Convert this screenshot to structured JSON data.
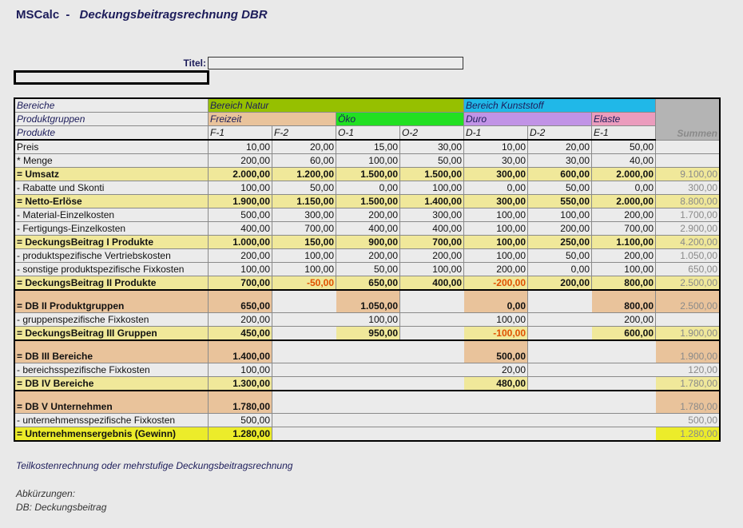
{
  "app": {
    "name": "MSCalc",
    "separator": "-",
    "title": "Deckungsbeitragsrechnung DBR"
  },
  "titel": {
    "label": "Titel:",
    "value": ""
  },
  "header": {
    "bereiche_label": "Bereiche",
    "produktgruppen_label": "Produktgruppen",
    "produkte_label": "Produkte",
    "bereiche": [
      {
        "label": "Bereich Natur",
        "color": "#96c000"
      },
      {
        "label": "Bereich Kunststoff",
        "color": "#20b8e8"
      }
    ],
    "gruppen": [
      {
        "label": "Freizeit",
        "color": "#e9c39b"
      },
      {
        "label": "Öko",
        "color": "#22e022"
      },
      {
        "label": "Duro",
        "color": "#c193e6"
      },
      {
        "label": "Elaste",
        "color": "#eb9cbd"
      }
    ],
    "produkte": [
      "F-1",
      "F-2",
      "O-1",
      "O-2",
      "D-1",
      "D-2",
      "E-1"
    ],
    "summen_label": "Summen"
  },
  "rows": [
    {
      "label": "Preis",
      "kind": "normal",
      "cells": [
        "10,00",
        "20,00",
        "15,00",
        "30,00",
        "10,00",
        "20,00",
        "50,00",
        ""
      ]
    },
    {
      "label": "* Menge",
      "kind": "normal",
      "cells": [
        "200,00",
        "60,00",
        "100,00",
        "50,00",
        "30,00",
        "30,00",
        "40,00",
        ""
      ]
    },
    {
      "label": "= Umsatz",
      "kind": "sum",
      "fill": "yellow",
      "cells": [
        "2.000,00",
        "1.200,00",
        "1.500,00",
        "1.500,00",
        "300,00",
        "600,00",
        "2.000,00",
        "9.100,00"
      ]
    },
    {
      "label": "- Rabatte und Skonti",
      "kind": "normal",
      "cells": [
        "100,00",
        "50,00",
        "0,00",
        "100,00",
        "0,00",
        "50,00",
        "0,00",
        "300,00"
      ]
    },
    {
      "label": "= Netto-Erlöse",
      "kind": "sum",
      "fill": "yellow",
      "cells": [
        "1.900,00",
        "1.150,00",
        "1.500,00",
        "1.400,00",
        "300,00",
        "550,00",
        "2.000,00",
        "8.800,00"
      ]
    },
    {
      "label": "- Material-Einzelkosten",
      "kind": "normal",
      "cells": [
        "500,00",
        "300,00",
        "200,00",
        "300,00",
        "100,00",
        "100,00",
        "200,00",
        "1.700,00"
      ]
    },
    {
      "label": "- Fertigungs-Einzelkosten",
      "kind": "normal",
      "cells": [
        "400,00",
        "700,00",
        "400,00",
        "400,00",
        "100,00",
        "200,00",
        "700,00",
        "2.900,00"
      ]
    },
    {
      "label": "= DeckungsBeitrag I Produkte",
      "kind": "sum",
      "fill": "yellow",
      "cells": [
        "1.000,00",
        "150,00",
        "900,00",
        "700,00",
        "100,00",
        "250,00",
        "1.100,00",
        "4.200,00"
      ]
    },
    {
      "label": "- produktspezifische Vertriebskosten",
      "kind": "normal",
      "cells": [
        "200,00",
        "100,00",
        "200,00",
        "200,00",
        "100,00",
        "50,00",
        "200,00",
        "1.050,00"
      ]
    },
    {
      "label": "- sonstige produktspezifische Fixkosten",
      "kind": "normal",
      "cells": [
        "100,00",
        "100,00",
        "50,00",
        "100,00",
        "200,00",
        "0,00",
        "100,00",
        "650,00"
      ]
    },
    {
      "label": "= DeckungsBeitrag II Produkte",
      "kind": "sum",
      "fill": "yellow",
      "thick": true,
      "cells": [
        "700,00",
        "-50,00",
        "650,00",
        "400,00",
        "-200,00",
        "200,00",
        "800,00",
        "2.500,00"
      ]
    },
    {
      "label": "= DB II Produktgruppen",
      "kind": "group",
      "fill": "peach",
      "tall": true,
      "cells": [
        "650,00",
        null,
        "1.050,00",
        null,
        "0,00",
        null,
        "800,00",
        "2.500,00"
      ]
    },
    {
      "label": "- gruppenspezifische Fixkosten",
      "kind": "normal",
      "cells": [
        "200,00",
        null,
        "100,00",
        null,
        "100,00",
        null,
        "200,00",
        ""
      ]
    },
    {
      "label": "= DeckungsBeitrag III Gruppen",
      "kind": "group",
      "fill": "yellow",
      "thick": true,
      "cells": [
        "450,00",
        null,
        "950,00",
        null,
        "-100,00",
        null,
        "600,00",
        "1.900,00"
      ]
    },
    {
      "label": "= DB III Bereiche",
      "kind": "group",
      "fill": "peach",
      "tall": true,
      "cells": [
        "1.400,00",
        null,
        null,
        null,
        "500,00",
        null,
        null,
        "1.900,00"
      ]
    },
    {
      "label": "- bereichsspezifische Fixkosten",
      "kind": "normal",
      "cells": [
        "100,00",
        null,
        null,
        null,
        "20,00",
        null,
        null,
        "120,00"
      ]
    },
    {
      "label": "= DB IV Bereiche",
      "kind": "group",
      "fill": "yellow",
      "thick": true,
      "cells": [
        "1.300,00",
        null,
        null,
        null,
        "480,00",
        null,
        null,
        "1.780,00"
      ]
    },
    {
      "label": "= DB V  Unternehmen",
      "kind": "group",
      "fill": "peach",
      "tall": true,
      "cells": [
        "1.780,00",
        null,
        null,
        null,
        null,
        null,
        null,
        "1.780,00"
      ]
    },
    {
      "label": "- unternehmensspezifische Fixkosten",
      "kind": "normal",
      "cells": [
        "500,00",
        null,
        null,
        null,
        null,
        null,
        null,
        "500,00"
      ]
    },
    {
      "label": "= Unternehmensergebnis (Gewinn)",
      "kind": "group",
      "fill": "bright",
      "cells": [
        "1.280,00",
        null,
        null,
        null,
        null,
        null,
        null,
        "1.280,00"
      ]
    }
  ],
  "footer": {
    "description": "Teilkostenrechnung oder mehrstufige Deckungsbeitragsrechnung",
    "abbr_title": "Abkürzungen:",
    "abbr_db": "DB:  Deckungsbeitrag"
  }
}
